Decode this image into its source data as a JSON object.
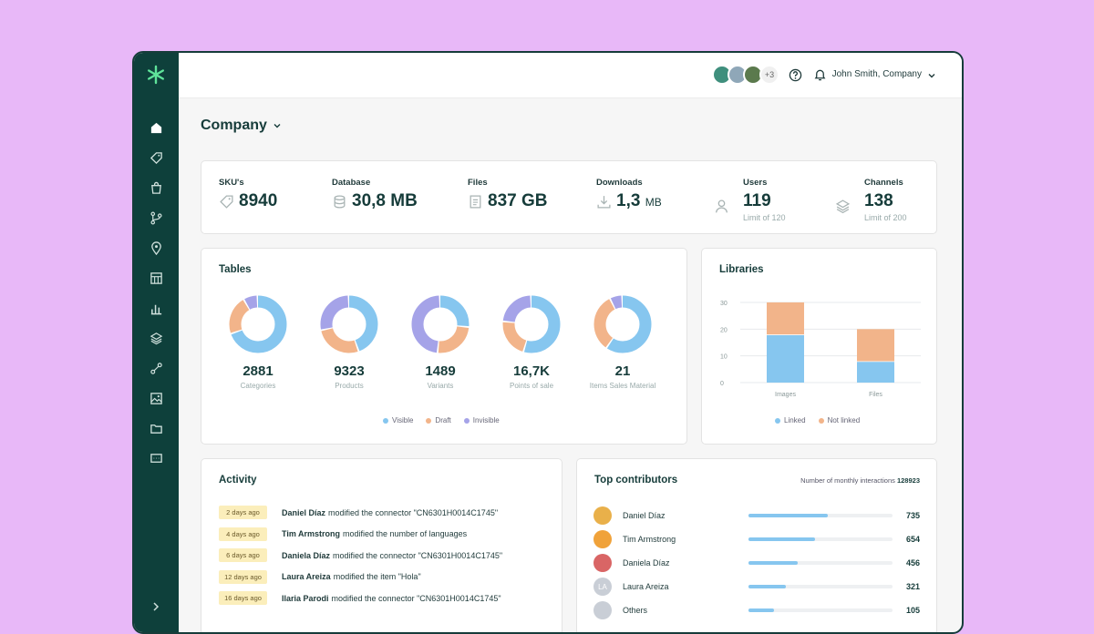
{
  "header": {
    "avatars_more": "+3",
    "user_name": "John Smith, Company"
  },
  "page": {
    "title": "Company"
  },
  "stats": {
    "skus": {
      "label": "SKU's",
      "value": "8940"
    },
    "database": {
      "label": "Database",
      "value": "30,8 MB"
    },
    "files": {
      "label": "Files",
      "value": "837 GB"
    },
    "downloads": {
      "label": "Downloads",
      "value": "1,3",
      "unit": "MB"
    },
    "users": {
      "label": "Users",
      "value": "119",
      "sub": "Limit of 120"
    },
    "channels": {
      "label": "Channels",
      "value": "138",
      "sub": "Limit of 200"
    }
  },
  "tables": {
    "title": "Tables",
    "legend": [
      {
        "label": "Visible",
        "color": "#86c6ef"
      },
      {
        "label": "Draft",
        "color": "#f2b48a"
      },
      {
        "label": "Invisible",
        "color": "#a5a3e8"
      }
    ],
    "donuts": [
      {
        "value": "2881",
        "label": "Categories",
        "visible": 0.7,
        "draft": 0.22,
        "invisible": 0.08
      },
      {
        "value": "9323",
        "label": "Products",
        "visible": 0.45,
        "draft": 0.27,
        "invisible": 0.28
      },
      {
        "value": "1489",
        "label": "Variants",
        "visible": 0.27,
        "draft": 0.25,
        "invisible": 0.48
      },
      {
        "value": "16,7K",
        "label": "Points of sale",
        "visible": 0.55,
        "draft": 0.22,
        "invisible": 0.23
      },
      {
        "value": "21",
        "label": "Items Sales Material",
        "visible": 0.6,
        "draft": 0.33,
        "invisible": 0.07
      }
    ]
  },
  "chart_data": {
    "type": "bar",
    "title": "Libraries",
    "categories": [
      "Images",
      "Files"
    ],
    "series": [
      {
        "name": "Linked",
        "values": [
          18,
          8
        ]
      },
      {
        "name": "Not linked",
        "values": [
          12,
          12
        ]
      }
    ],
    "stacked": true,
    "ylim": [
      0,
      30
    ],
    "yticks": [
      "0",
      "10",
      "20",
      "30"
    ],
    "grid": true,
    "legend": "bottom",
    "colors": [
      "#86c6ef",
      "#f2b48a"
    ]
  },
  "activity": {
    "title": "Activity",
    "items": [
      {
        "time": "2 days ago",
        "user": "Daniel Díaz",
        "text": "modified the connector \"CN6301H0014C1745\""
      },
      {
        "time": "4 days ago",
        "user": "Tim Armstrong",
        "text": "modified the number of languages"
      },
      {
        "time": "6 days ago",
        "user": "Daniela Díaz",
        "text": "modified the connector \"CN6301H0014C1745\""
      },
      {
        "time": "12 days ago",
        "user": "Laura Areiza",
        "text": "modified the item \"Hola\""
      },
      {
        "time": "16 days ago",
        "user": "Ilaria Parodi",
        "text": "modified the connector \"CN6301H0014C1745\""
      }
    ]
  },
  "contributors": {
    "title": "Top contributors",
    "meta_label": "Number of monthly interactions",
    "meta_value": "128923",
    "items": [
      {
        "name": "Daniel Díaz",
        "value": "735",
        "fraction": 0.55,
        "avatar_color": "#e9b04a",
        "initials": ""
      },
      {
        "name": "Tim Armstrong",
        "value": "654",
        "fraction": 0.46,
        "avatar_color": "#f0a23a",
        "initials": ""
      },
      {
        "name": "Daniela Díaz",
        "value": "456",
        "fraction": 0.34,
        "avatar_color": "#d96565",
        "initials": ""
      },
      {
        "name": "Laura Areiza",
        "value": "321",
        "fraction": 0.26,
        "avatar_color": "#c9ced6",
        "initials": "LA"
      },
      {
        "name": "Others",
        "value": "105",
        "fraction": 0.18,
        "avatar_color": "#c9ced6",
        "initials": ""
      }
    ]
  }
}
